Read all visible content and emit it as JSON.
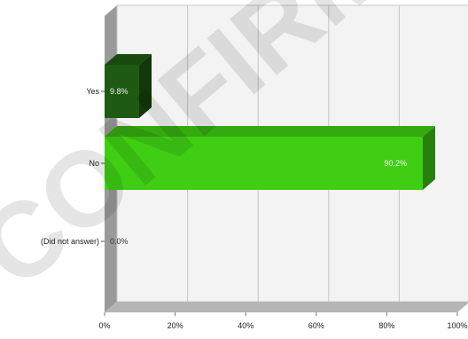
{
  "watermark": "CONFIRMIT",
  "chart_data": {
    "type": "bar",
    "orientation": "horizontal",
    "three_d": true,
    "categories": [
      "Yes",
      "No",
      "(Did not answer)"
    ],
    "values": [
      9.8,
      90.2,
      0.0
    ],
    "data_labels": [
      "9.8%",
      "90.2%",
      "0.0%"
    ],
    "bar_colors": [
      "#1f5a12",
      "#3fce13",
      "#3fce13"
    ],
    "xlim": [
      0,
      100
    ],
    "xticks": [
      0,
      20,
      40,
      60,
      80,
      100
    ],
    "xtick_labels": [
      "0%",
      "20%",
      "40%",
      "60%",
      "80%",
      "100%"
    ],
    "grid": true,
    "legend": "none",
    "title": "",
    "xlabel": "",
    "ylabel": ""
  }
}
